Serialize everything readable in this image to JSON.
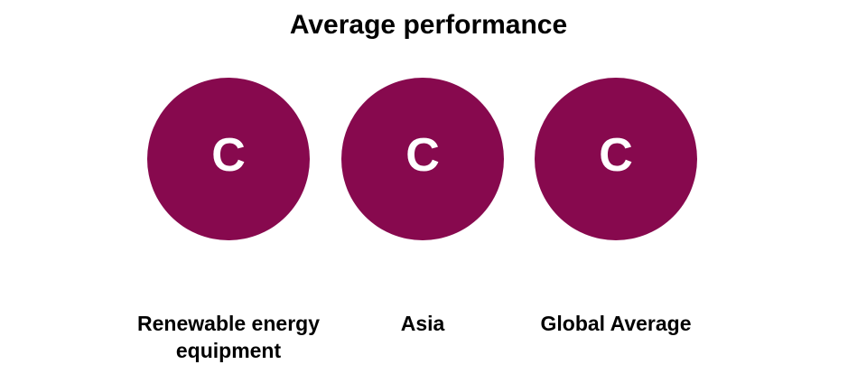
{
  "title": "Average performance",
  "colors": {
    "circle_fill": "#87094E",
    "grade_text": "#FFFFFF",
    "label_text": "#000000",
    "background": "#FFFFFF"
  },
  "items": [
    {
      "grade": "C",
      "label": "Renewable energy equipment"
    },
    {
      "grade": "C",
      "label": "Asia"
    },
    {
      "grade": "C",
      "label": "Global Average"
    }
  ],
  "chart_data": {
    "type": "table",
    "title": "Average performance",
    "categories": [
      "Renewable energy equipment",
      "Asia",
      "Global Average"
    ],
    "values": [
      "C",
      "C",
      "C"
    ],
    "legend": [],
    "notes": "Three equal-size grade badges, each showing letter grade C on a dark magenta circle"
  }
}
